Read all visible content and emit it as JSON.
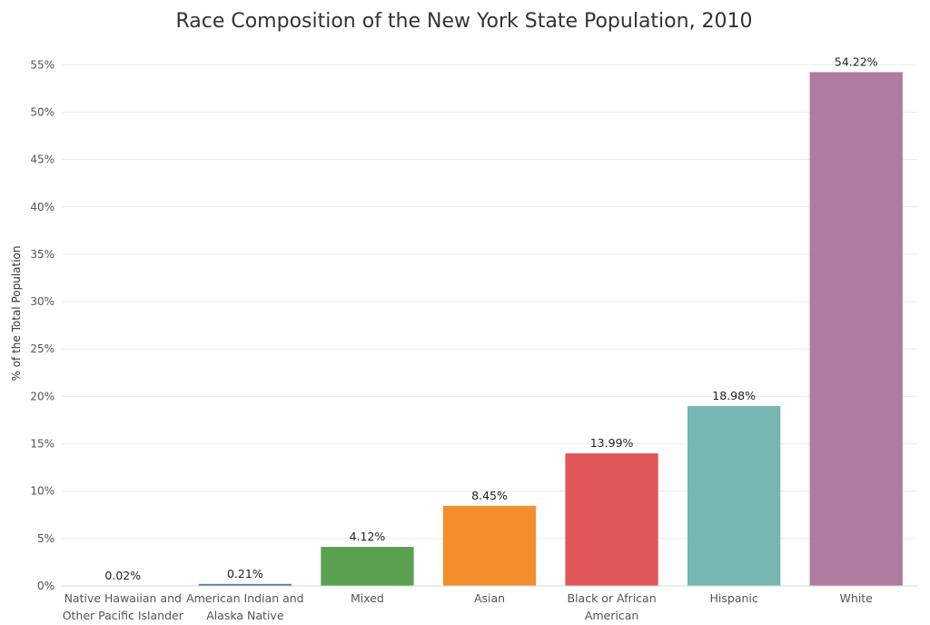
{
  "chart_data": {
    "type": "bar",
    "title": "Race Composition of the New York State Population, 2010",
    "ylabel": "% of the Total Population",
    "xlabel": "",
    "ylim": [
      0,
      0.58
    ],
    "yticks": [
      "0%",
      "5%",
      "10%",
      "15%",
      "20%",
      "25%",
      "30%",
      "35%",
      "40%",
      "45%",
      "50%",
      "55%"
    ],
    "ytick_values": [
      0,
      0.05,
      0.1,
      0.15,
      0.2,
      0.25,
      0.3,
      0.35,
      0.4,
      0.45,
      0.5,
      0.55
    ],
    "grid": true,
    "categories": [
      [
        "Native Hawaiian and",
        "Other Pacific Islander"
      ],
      [
        "American Indian and",
        "Alaska Native"
      ],
      [
        "Mixed"
      ],
      [
        "Asian"
      ],
      [
        "Black or African",
        "American"
      ],
      [
        "Hispanic"
      ],
      [
        "White"
      ]
    ],
    "values": [
      0.0002,
      0.0021,
      0.0412,
      0.0845,
      0.1399,
      0.1898,
      0.5422
    ],
    "value_labels": [
      "0.02%",
      "0.21%",
      "4.12%",
      "8.45%",
      "13.99%",
      "18.98%",
      "54.22%"
    ],
    "colors": [
      "#e8b2c8",
      "#4e79a7",
      "#59a14f",
      "#f28e2b",
      "#e15759",
      "#76b7b2",
      "#b07aa1"
    ]
  }
}
